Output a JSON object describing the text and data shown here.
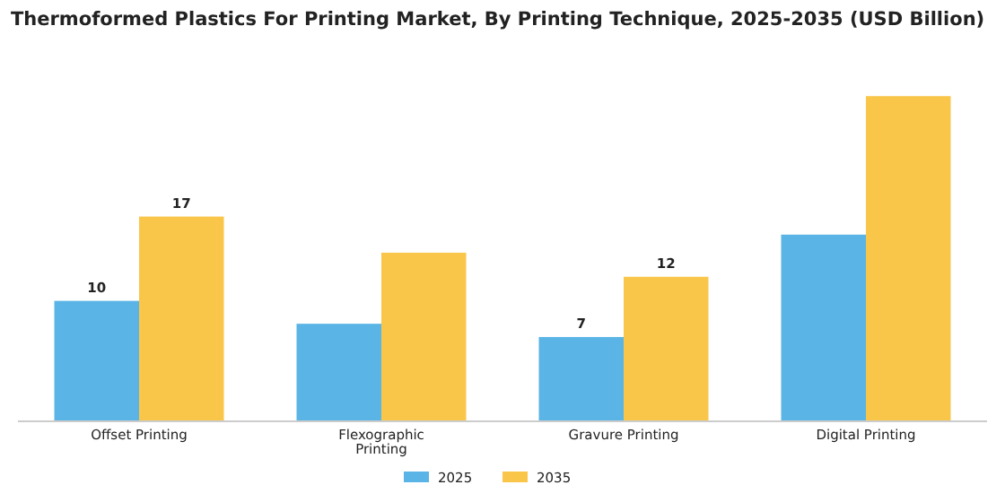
{
  "chart_data": {
    "type": "bar",
    "title": "Thermoformed Plastics For Printing Market, By Printing Technique, 2025-2035 (USD Billion)",
    "categories": [
      "Offset Printing",
      "Flexographic Printing",
      "Gravure Printing",
      "Digital Printing"
    ],
    "series": [
      {
        "name": "2025",
        "color": "#5ab4e5",
        "values": [
          10,
          8.1,
          7,
          15.5
        ],
        "value_labels": [
          "10",
          null,
          "7",
          null
        ]
      },
      {
        "name": "2035",
        "color": "#f9c64a",
        "values": [
          17,
          14,
          12,
          27
        ],
        "value_labels": [
          "17",
          null,
          "12",
          null
        ]
      }
    ],
    "tick_labels": "x",
    "legend": "bottom"
  }
}
